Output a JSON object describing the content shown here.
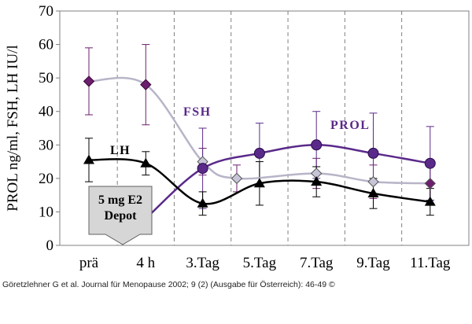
{
  "chart_data": {
    "type": "line",
    "title": "",
    "xlabel": "",
    "ylabel": "PROL ng/ml, FSH, LH IU/l",
    "categories": [
      "prä",
      "4 h",
      "3.Tag",
      "5.Tag",
      "7.Tag",
      "9.Tag",
      "11.Tag"
    ],
    "ylim": [
      0,
      70
    ],
    "yticks": [
      0,
      10,
      20,
      30,
      40,
      50,
      60,
      70
    ],
    "grid": "vertical-dashed",
    "legend": "none",
    "series": [
      {
        "name": "FSH",
        "color": "#b8b4c8",
        "marker": "diamond",
        "marker_color": "#6e1e6e",
        "x": [
          0,
          1,
          2,
          2.6,
          4,
          5,
          6
        ],
        "values": [
          49,
          48,
          25,
          20,
          21.5,
          19,
          18.5
        ],
        "error": [
          10,
          12,
          4,
          4,
          4.5,
          5,
          5
        ]
      },
      {
        "name": "PROL",
        "color": "#5a2a8a",
        "marker": "circle",
        "marker_color": "#5a2a8a",
        "x": [
          1,
          2,
          3,
          4,
          5,
          6
        ],
        "values": [
          8,
          23,
          27.5,
          30,
          27.5,
          24.5
        ],
        "error": [
          3,
          12,
          9,
          10,
          12,
          11
        ]
      },
      {
        "name": "LH",
        "color": "#000000",
        "marker": "triangle",
        "marker_color": "#000000",
        "x": [
          0,
          1,
          2,
          3,
          4,
          5,
          6
        ],
        "values": [
          25.5,
          24.5,
          12.5,
          18.5,
          19,
          15.5,
          13
        ],
        "error": [
          6.5,
          3.5,
          3.5,
          6.5,
          4.5,
          4.5,
          4
        ]
      }
    ],
    "annotations": {
      "box_line1": "5 mg E2",
      "box_line2": "Depot"
    }
  },
  "caption": "Göretzlehner G et al. Journal für Menopause 2002; 9 (2) (Ausgabe für Österreich): 46-49 ©"
}
